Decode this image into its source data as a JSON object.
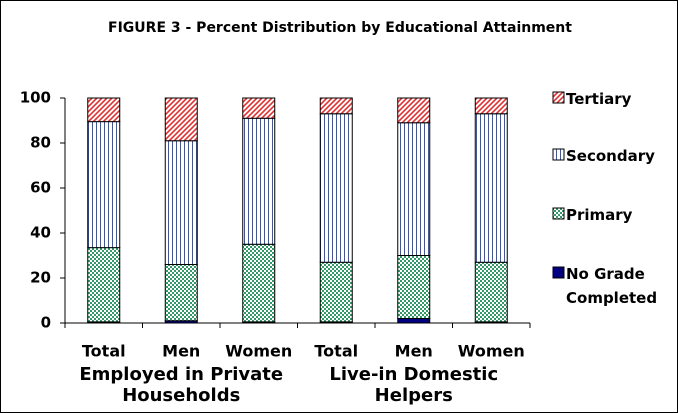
{
  "chart_data": {
    "type": "stacked_bar",
    "title": "FIGURE 3 - Percent Distribution by Educational Attainment",
    "categories": [
      "Total",
      "Men",
      "Women",
      "Total",
      "Men",
      "Women"
    ],
    "groups": [
      "Employed in Private Households",
      "Live-in Domestic Helpers"
    ],
    "series": [
      {
        "name": "No Grade Completed",
        "color": "#000080",
        "pattern": "solid",
        "values": [
          0.5,
          1,
          0.5,
          0.5,
          2,
          0.5
        ]
      },
      {
        "name": "Primary",
        "color": "#339966",
        "pattern": "checker",
        "values": [
          33,
          25,
          34.5,
          26.5,
          28,
          26.5
        ]
      },
      {
        "name": "Secondary",
        "color": "#3355cc",
        "pattern": "vertical",
        "values": [
          56,
          55,
          56,
          66,
          59,
          66
        ]
      },
      {
        "name": "Tertiary",
        "color": "#e03030",
        "pattern": "diagonal",
        "values": [
          10.5,
          19,
          9,
          7,
          11,
          7
        ]
      }
    ],
    "ylim": [
      0,
      100
    ],
    "yticks": [
      0,
      20,
      40,
      60,
      80,
      100
    ]
  }
}
